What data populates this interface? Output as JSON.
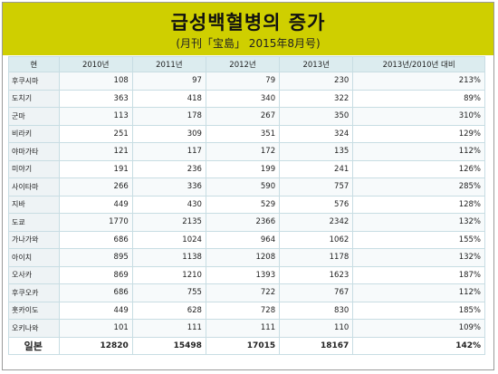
{
  "title": "급성백혈병의 증가",
  "subtitle": "(月刊「宝島」 2015年8月号)",
  "headers": [
    "현",
    "2010년",
    "2011년",
    "2012년",
    "2013년",
    "2013년/2010년 대비"
  ],
  "rows": [
    [
      "후쿠시마",
      "108",
      "97",
      "79",
      "230",
      "213%"
    ],
    [
      "도치기",
      "363",
      "418",
      "340",
      "322",
      "89%"
    ],
    [
      "군마",
      "113",
      "178",
      "267",
      "350",
      "310%"
    ],
    [
      "비라키",
      "251",
      "309",
      "351",
      "324",
      "129%"
    ],
    [
      "야마가타",
      "121",
      "117",
      "172",
      "135",
      "112%"
    ],
    [
      "미야기",
      "191",
      "236",
      "199",
      "241",
      "126%"
    ],
    [
      "사이타마",
      "266",
      "336",
      "590",
      "757",
      "285%"
    ],
    [
      "지바",
      "449",
      "430",
      "529",
      "576",
      "128%"
    ],
    [
      "도쿄",
      "1770",
      "2135",
      "2366",
      "2342",
      "132%"
    ],
    [
      "가나가와",
      "686",
      "1024",
      "964",
      "1062",
      "155%"
    ],
    [
      "아이치",
      "895",
      "1138",
      "1208",
      "1178",
      "132%"
    ],
    [
      "오사카",
      "869",
      "1210",
      "1393",
      "1623",
      "187%"
    ],
    [
      "후쿠오카",
      "686",
      "755",
      "722",
      "767",
      "112%"
    ],
    [
      "홋카이도",
      "449",
      "628",
      "728",
      "830",
      "185%"
    ],
    [
      "오키나와",
      "101",
      "111",
      "111",
      "110",
      "109%"
    ]
  ],
  "total": [
    "일본",
    "12820",
    "15498",
    "17015",
    "18167",
    "142%"
  ]
}
